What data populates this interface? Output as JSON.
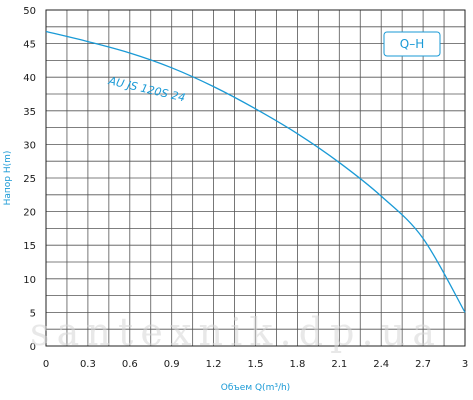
{
  "chart_data": {
    "type": "line",
    "title": "",
    "xlabel": "Объем Q(m³/h)",
    "ylabel": "Напор H(m)",
    "xlim": [
      0,
      3
    ],
    "ylim": [
      0,
      50
    ],
    "x_ticks": [
      "0",
      "0.3",
      "0.6",
      "0.9",
      "1.2",
      "1.5",
      "1.8",
      "2.1",
      "2.4",
      "2.7",
      "3"
    ],
    "y_ticks": [
      "0",
      "5",
      "10",
      "15",
      "20",
      "25",
      "30",
      "35",
      "40",
      "45",
      "50"
    ],
    "grid": true,
    "legend": {
      "text": "Q–H",
      "position": "top-right"
    },
    "series": [
      {
        "name": "AU JS 120S 24",
        "color": "#1a9ad6",
        "points": [
          [
            0,
            46.8
          ],
          [
            0.3,
            45.3
          ],
          [
            0.6,
            43.6
          ],
          [
            0.9,
            41.4
          ],
          [
            1.2,
            38.6
          ],
          [
            1.5,
            35.3
          ],
          [
            1.8,
            31.6
          ],
          [
            2.1,
            27.3
          ],
          [
            2.4,
            22.3
          ],
          [
            2.7,
            16.0
          ],
          [
            3.0,
            5.0
          ]
        ]
      }
    ],
    "watermark": "santexnik.dp.ua"
  }
}
